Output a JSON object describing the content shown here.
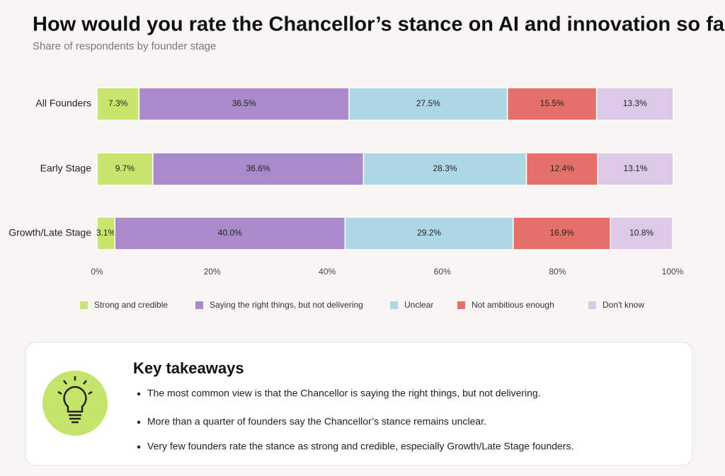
{
  "chart_data": {
    "type": "stacked-bar-horizontal",
    "title": "How would you rate the Chancellor’s stance on AI and innovation so far?",
    "subtitle": "Share of respondents by founder stage",
    "categories": [
      "All Founders",
      "Early Stage",
      "Growth/Late Stage"
    ],
    "series": [
      {
        "name": "Strong and credible",
        "color": "#c8e66e",
        "values": [
          7.3,
          9.7,
          3.1
        ],
        "value_labels": [
          "7.3%",
          "9.7%",
          "3.1%"
        ]
      },
      {
        "name": "Saying the right things, but not delivering",
        "color": "#a98bcb",
        "values": [
          36.5,
          36.6,
          40.0
        ],
        "value_labels": [
          "36.5%",
          "36.6%",
          "40.0%"
        ]
      },
      {
        "name": "Unclear",
        "color": "#add8e3",
        "values": [
          27.5,
          28.3,
          29.2
        ],
        "value_labels": [
          "27.5%",
          "28.3%",
          "29.2%"
        ]
      },
      {
        "name": "Not ambitious enough",
        "color": "#e5706a",
        "values": [
          15.5,
          12.4,
          16.9
        ],
        "value_labels": [
          "15.5%",
          "12.4%",
          "16.9%"
        ]
      },
      {
        "name": "Don't know",
        "color": "#dcc9e8",
        "values": [
          13.3,
          13.1,
          10.8
        ],
        "value_labels": [
          "13.3%",
          "13.1%",
          "10.8%"
        ]
      }
    ],
    "xlim": [
      0,
      100
    ],
    "xticks": [
      {
        "value": 0,
        "label": "0%"
      },
      {
        "value": 20,
        "label": "20%"
      },
      {
        "value": 40,
        "label": "40%"
      },
      {
        "value": 60,
        "label": "60%"
      },
      {
        "value": 80,
        "label": "80%"
      },
      {
        "value": 100,
        "label": "100%"
      }
    ],
    "legend": "bottom"
  },
  "takeaways": {
    "title": "Key takeaways",
    "items": [
      "The most common view is that the Chancellor is saying the right things, but not delivering.",
      "More than a quarter of founders say the Chancellor’s stance remains unclear.",
      "Very few founders rate the stance as strong and credible, especially Growth/Late Stage founders."
    ]
  }
}
